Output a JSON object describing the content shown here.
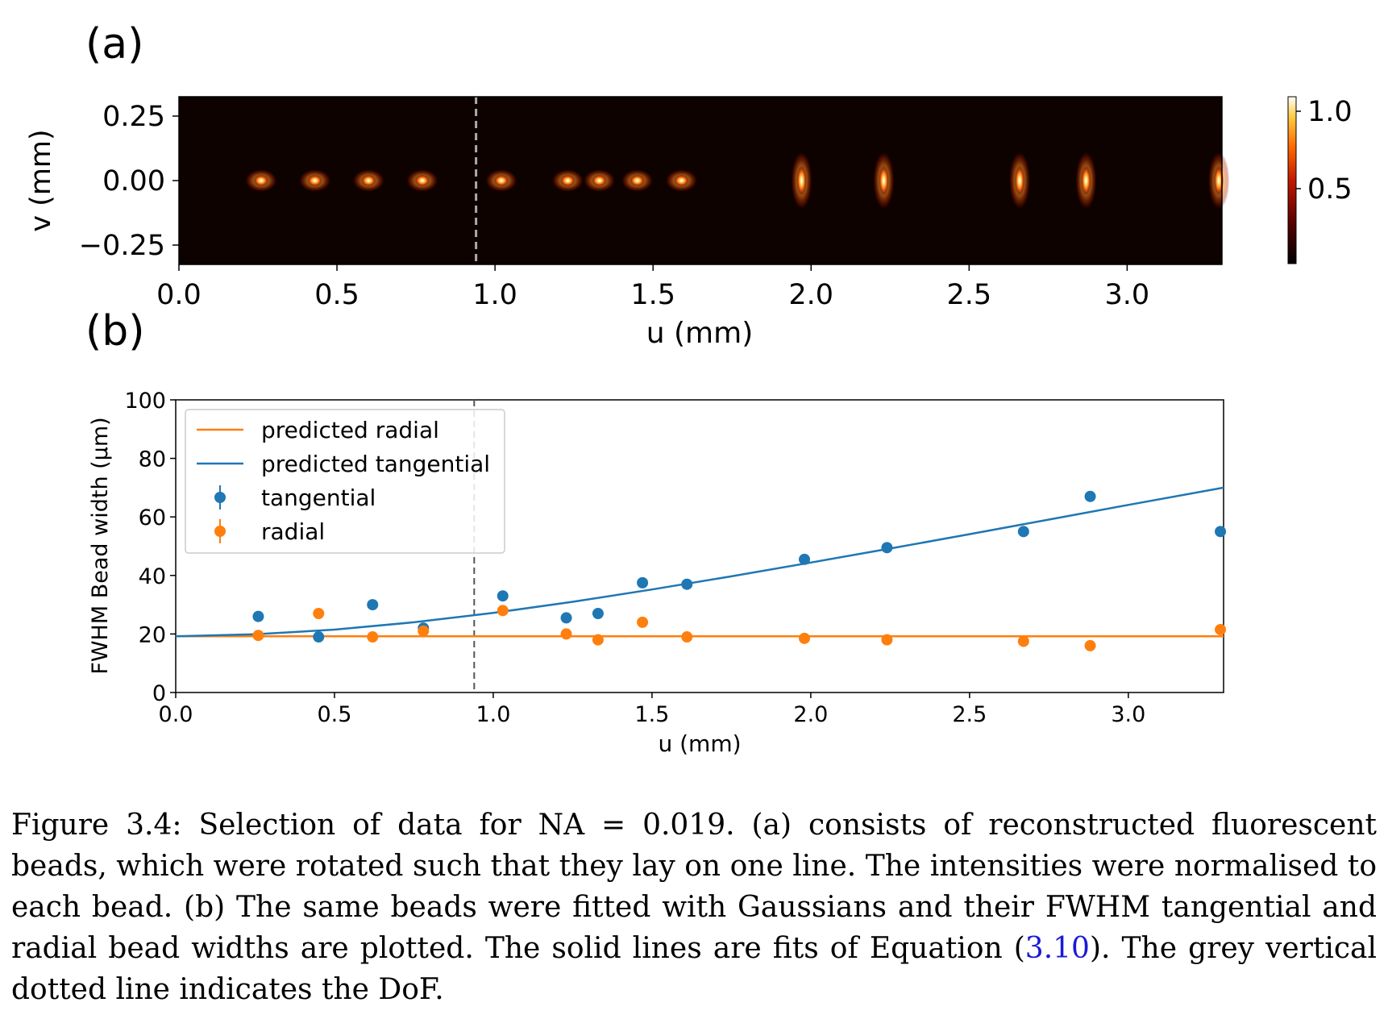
{
  "panel_a": {
    "label": "(a)",
    "xlabel": "u (mm)",
    "ylabel": "v (mm)",
    "xticks": [
      "0.0",
      "0.5",
      "1.0",
      "1.5",
      "2.0",
      "2.5",
      "3.0"
    ],
    "yticks": [
      "0.25",
      "0.00",
      "−0.25"
    ],
    "colorbar_ticks": [
      "1.0",
      "0.5"
    ],
    "colormap": "afmhot",
    "dof_line_u": 0.94,
    "bead_u": [
      0.26,
      0.43,
      0.6,
      0.77,
      1.02,
      1.23,
      1.33,
      1.45,
      1.59,
      1.97,
      2.23,
      2.66,
      2.87,
      3.29
    ]
  },
  "panel_b": {
    "label": "(b)"
  },
  "chart_data": {
    "type": "scatter",
    "xlabel": "u (mm)",
    "ylabel": "FWHM Bead width (μm)",
    "xlim": [
      0,
      3.3
    ],
    "ylim": [
      0,
      100
    ],
    "xticks": [
      "0.0",
      "0.5",
      "1.0",
      "1.5",
      "2.0",
      "2.5",
      "3.0"
    ],
    "yticks": [
      "0",
      "20",
      "40",
      "60",
      "80",
      "100"
    ],
    "grid": false,
    "legend_position": "top-left",
    "dof_line_x": 0.94,
    "series": [
      {
        "name": "predicted radial",
        "kind": "line",
        "color": "#ff7f0e",
        "x": [
          0,
          3.3
        ],
        "y": [
          19.2,
          19.2
        ]
      },
      {
        "name": "predicted tangential",
        "kind": "line",
        "color": "#1f77b4",
        "x": [
          0,
          0.25,
          0.5,
          0.75,
          1.0,
          1.25,
          1.5,
          1.75,
          2.0,
          2.25,
          2.5,
          2.75,
          3.0,
          3.3
        ],
        "y": [
          19.2,
          19.9,
          21.5,
          24.0,
          27.2,
          31.0,
          35.2,
          39.7,
          44.4,
          49.2,
          54.1,
          59.1,
          64.1,
          70.0
        ]
      },
      {
        "name": "tangential",
        "kind": "points",
        "color": "#1f77b4",
        "x": [
          0.26,
          0.45,
          0.62,
          0.78,
          1.03,
          1.23,
          1.33,
          1.47,
          1.61,
          1.98,
          2.24,
          2.67,
          2.88,
          3.29
        ],
        "y": [
          26,
          19,
          30,
          22,
          33,
          25.5,
          27,
          37.5,
          37,
          45.5,
          49.5,
          55,
          67,
          55
        ]
      },
      {
        "name": "radial",
        "kind": "points",
        "color": "#ff7f0e",
        "x": [
          0.26,
          0.45,
          0.62,
          0.78,
          1.03,
          1.23,
          1.33,
          1.47,
          1.61,
          1.98,
          2.24,
          2.67,
          2.88,
          3.29
        ],
        "y": [
          19.5,
          27,
          19,
          21,
          28,
          20,
          18,
          24,
          19,
          18.5,
          18,
          17.5,
          16,
          21.5
        ]
      }
    ]
  },
  "caption": {
    "part1": "Figure 3.4: Selection of data for NA = 0.019. (a) consists of reconstructed fluorescent beads, which were rotated such that they lay on one line. The intensities were normalised to each bead. (b) The same beads were fitted with Gaussians and their FWHM tangential and radial bead widths are plotted. The solid lines are fits of Equation (",
    "ref": "3.10",
    "part2": "). The grey vertical dotted line indicates the DoF."
  }
}
